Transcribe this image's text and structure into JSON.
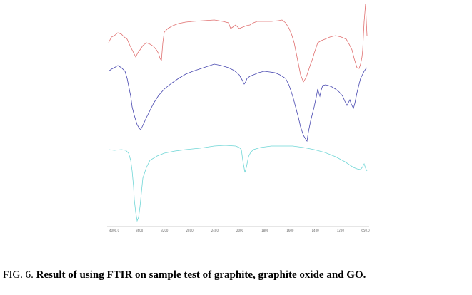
{
  "figure": {
    "axis_labels": [
      "4000.0",
      "3600",
      "3200",
      "2800",
      "2400",
      "2000",
      "1800",
      "1600",
      "1400",
      "1200",
      "650.0"
    ]
  },
  "caption": {
    "label": "FIG. 6.",
    "text": "Result of using FTIR on sample test of graphite, graphite oxide and GO."
  }
}
